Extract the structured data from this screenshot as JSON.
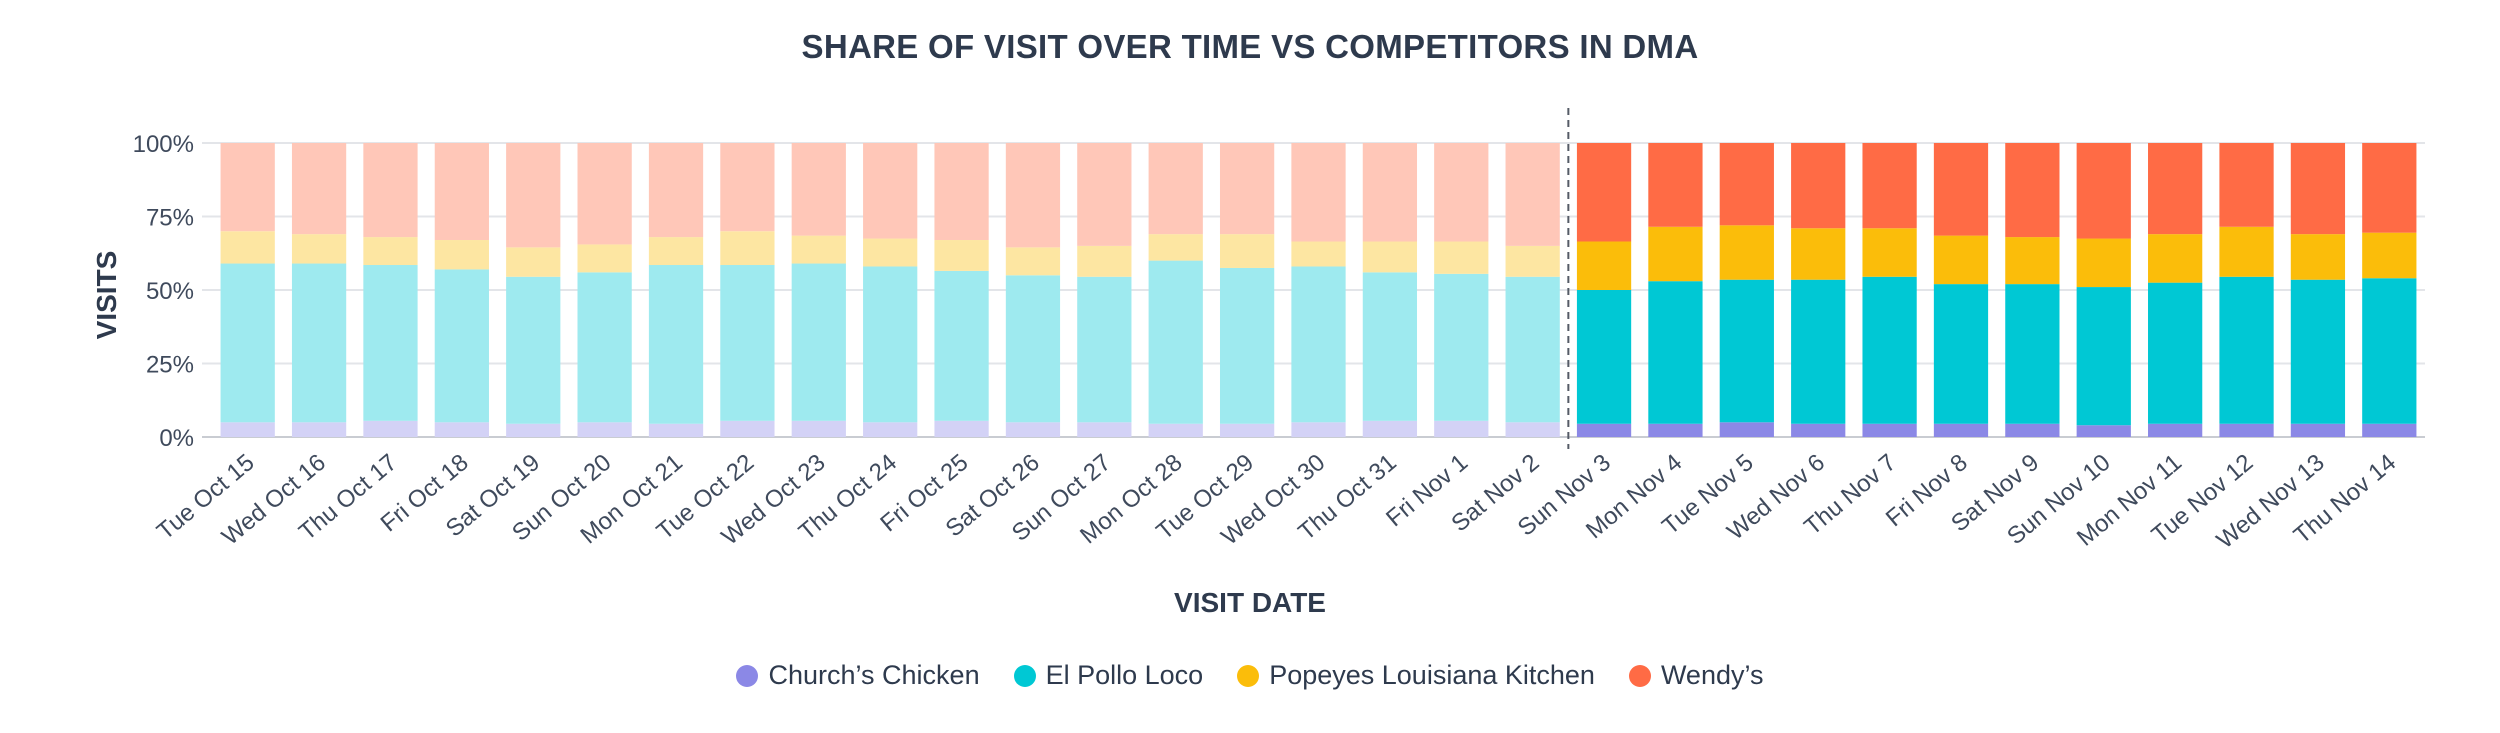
{
  "chart_data": {
    "type": "bar",
    "stacked": true,
    "title": "SHARE OF VISIT OVER TIME VS COMPETITORS IN DMA",
    "xlabel": "VISIT DATE",
    "ylabel": "VISITS",
    "ylim": [
      0,
      100
    ],
    "yticks": [
      "0%",
      "25%",
      "50%",
      "75%",
      "100%"
    ],
    "grid": true,
    "legend_position": "bottom",
    "reference_line_after_category": "Sat Nov 2",
    "categories": [
      "Tue Oct 15",
      "Wed Oct 16",
      "Thu Oct 17",
      "Fri Oct 18",
      "Sat Oct 19",
      "Sun Oct 20",
      "Mon Oct 21",
      "Tue Oct 22",
      "Wed Oct 23",
      "Thu Oct 24",
      "Fri Oct 25",
      "Sat Oct 26",
      "Sun Oct 27",
      "Mon Oct 28",
      "Tue Oct 29",
      "Wed Oct 30",
      "Thu Oct 31",
      "Fri Nov 1",
      "Sat Nov 2",
      "Sun Nov 3",
      "Mon Nov 4",
      "Tue Nov 5",
      "Wed Nov 6",
      "Thu Nov 7",
      "Fri Nov 8",
      "Sat Nov 9",
      "Sun Nov 10",
      "Mon Nov 11",
      "Tue Nov 12",
      "Wed Nov 13",
      "Thu Nov 14"
    ],
    "series": [
      {
        "name": "Church’s Chicken",
        "color": "#8b88e6",
        "values": [
          5,
          5,
          5.5,
          5,
          4.5,
          5,
          4.5,
          5.5,
          5.5,
          5,
          5.5,
          5,
          5,
          4.5,
          4.5,
          5,
          5.5,
          5.5,
          5,
          4.5,
          4.5,
          5,
          4.5,
          4.5,
          4.5,
          4.5,
          4,
          4.5,
          4.5,
          4.5,
          4.5
        ]
      },
      {
        "name": "El Pollo Loco",
        "color": "#00c8d4",
        "values": [
          54,
          54,
          53,
          52,
          50,
          51,
          54,
          53,
          53.5,
          53,
          51,
          50,
          49.5,
          55.5,
          53,
          53,
          50.5,
          50,
          49.5,
          45.5,
          48.5,
          48.5,
          49,
          50,
          47.5,
          47.5,
          47,
          48,
          50,
          49,
          49.5
        ]
      },
      {
        "name": "Popeyes Louisiana Kitchen",
        "color": "#fbbd0a",
        "values": [
          11,
          10,
          9.5,
          10,
          10,
          9.5,
          9.5,
          11.5,
          9.5,
          9.5,
          10.5,
          9.5,
          10.5,
          9,
          11.5,
          8.5,
          10.5,
          11,
          10.5,
          16.5,
          18.5,
          18.5,
          17.5,
          16.5,
          16.5,
          16,
          16.5,
          16.5,
          17,
          15.5,
          15.5
        ]
      },
      {
        "name": "Wendy’s",
        "color": "#ff6b45",
        "values": [
          30,
          31,
          32,
          33,
          35.5,
          34.5,
          32,
          30,
          31.5,
          32.5,
          33,
          35.5,
          35,
          31,
          31,
          33.5,
          33.5,
          33.5,
          35,
          33.5,
          28.5,
          28,
          29,
          29,
          31.5,
          32,
          32.5,
          31,
          28.5,
          31,
          30.5
        ]
      }
    ]
  }
}
